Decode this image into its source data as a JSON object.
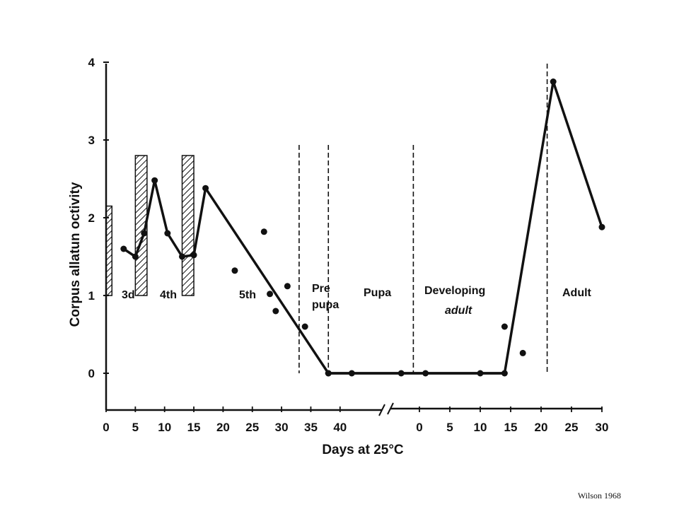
{
  "chart_data": {
    "type": "line",
    "xlabel": "Days at 25°C",
    "ylabel": "Corpus allatun octivity",
    "ylim": [
      -0.5,
      4
    ],
    "y_ticks": [
      "0",
      "1",
      "2",
      "3",
      "4"
    ],
    "x_ticks_larval": [
      "0",
      "5",
      "10",
      "15",
      "20",
      "25",
      "30",
      "35",
      "40"
    ],
    "x_ticks_adult": [
      "0",
      "5",
      "10",
      "15",
      "20",
      "25",
      "30"
    ],
    "x_axis_break": "between day 40 and day 0 of the second scale",
    "stage_labels": [
      "3d",
      "4th",
      "5th",
      "Pre",
      "pupa",
      "Pupa",
      "Developing",
      "adult",
      "Adult"
    ],
    "molt_bars": [
      {
        "from": 0,
        "to": 1
      },
      {
        "from": 5,
        "to": 7
      },
      {
        "from": 13,
        "to": 15
      }
    ],
    "boundaries": [
      {
        "segment": "larval",
        "x": 33
      },
      {
        "segment": "larval",
        "x": 38
      },
      {
        "segment": "adult",
        "x": -1
      },
      {
        "segment": "adult",
        "x": 21
      }
    ],
    "line_series": [
      {
        "segment": "larval",
        "x": 3,
        "y": 1.6
      },
      {
        "segment": "larval",
        "x": 5,
        "y": 1.5
      },
      {
        "segment": "larval",
        "x": 6.5,
        "y": 1.8
      },
      {
        "segment": "larval",
        "x": 8.3,
        "y": 2.48
      },
      {
        "segment": "larval",
        "x": 10.5,
        "y": 1.8
      },
      {
        "segment": "larval",
        "x": 13,
        "y": 1.5
      },
      {
        "segment": "larval",
        "x": 15,
        "y": 1.52
      },
      {
        "segment": "larval",
        "x": 17,
        "y": 2.38
      },
      {
        "segment": "larval",
        "x": 38,
        "y": 0
      },
      {
        "segment": "adult",
        "x": 14,
        "y": 0
      },
      {
        "segment": "adult",
        "x": 22,
        "y": 3.75
      },
      {
        "segment": "adult",
        "x": 30,
        "y": 1.88
      }
    ],
    "points": [
      {
        "segment": "larval",
        "x": 22,
        "y": 1.32
      },
      {
        "segment": "larval",
        "x": 27,
        "y": 1.82
      },
      {
        "segment": "larval",
        "x": 28,
        "y": 1.02
      },
      {
        "segment": "larval",
        "x": 29,
        "y": 0.8
      },
      {
        "segment": "larval",
        "x": 31,
        "y": 1.12
      },
      {
        "segment": "larval",
        "x": 34,
        "y": 0.6
      },
      {
        "segment": "larval",
        "x": 38,
        "y": 0
      },
      {
        "segment": "larval",
        "x": 42,
        "y": 0
      },
      {
        "segment": "adult",
        "x": -3,
        "y": 0
      },
      {
        "segment": "adult",
        "x": 1,
        "y": 0
      },
      {
        "segment": "adult",
        "x": 10,
        "y": 0
      },
      {
        "segment": "adult",
        "x": 14,
        "y": 0.6
      },
      {
        "segment": "adult",
        "x": 17,
        "y": 0.26
      }
    ]
  },
  "credit": "Wilson 1968"
}
